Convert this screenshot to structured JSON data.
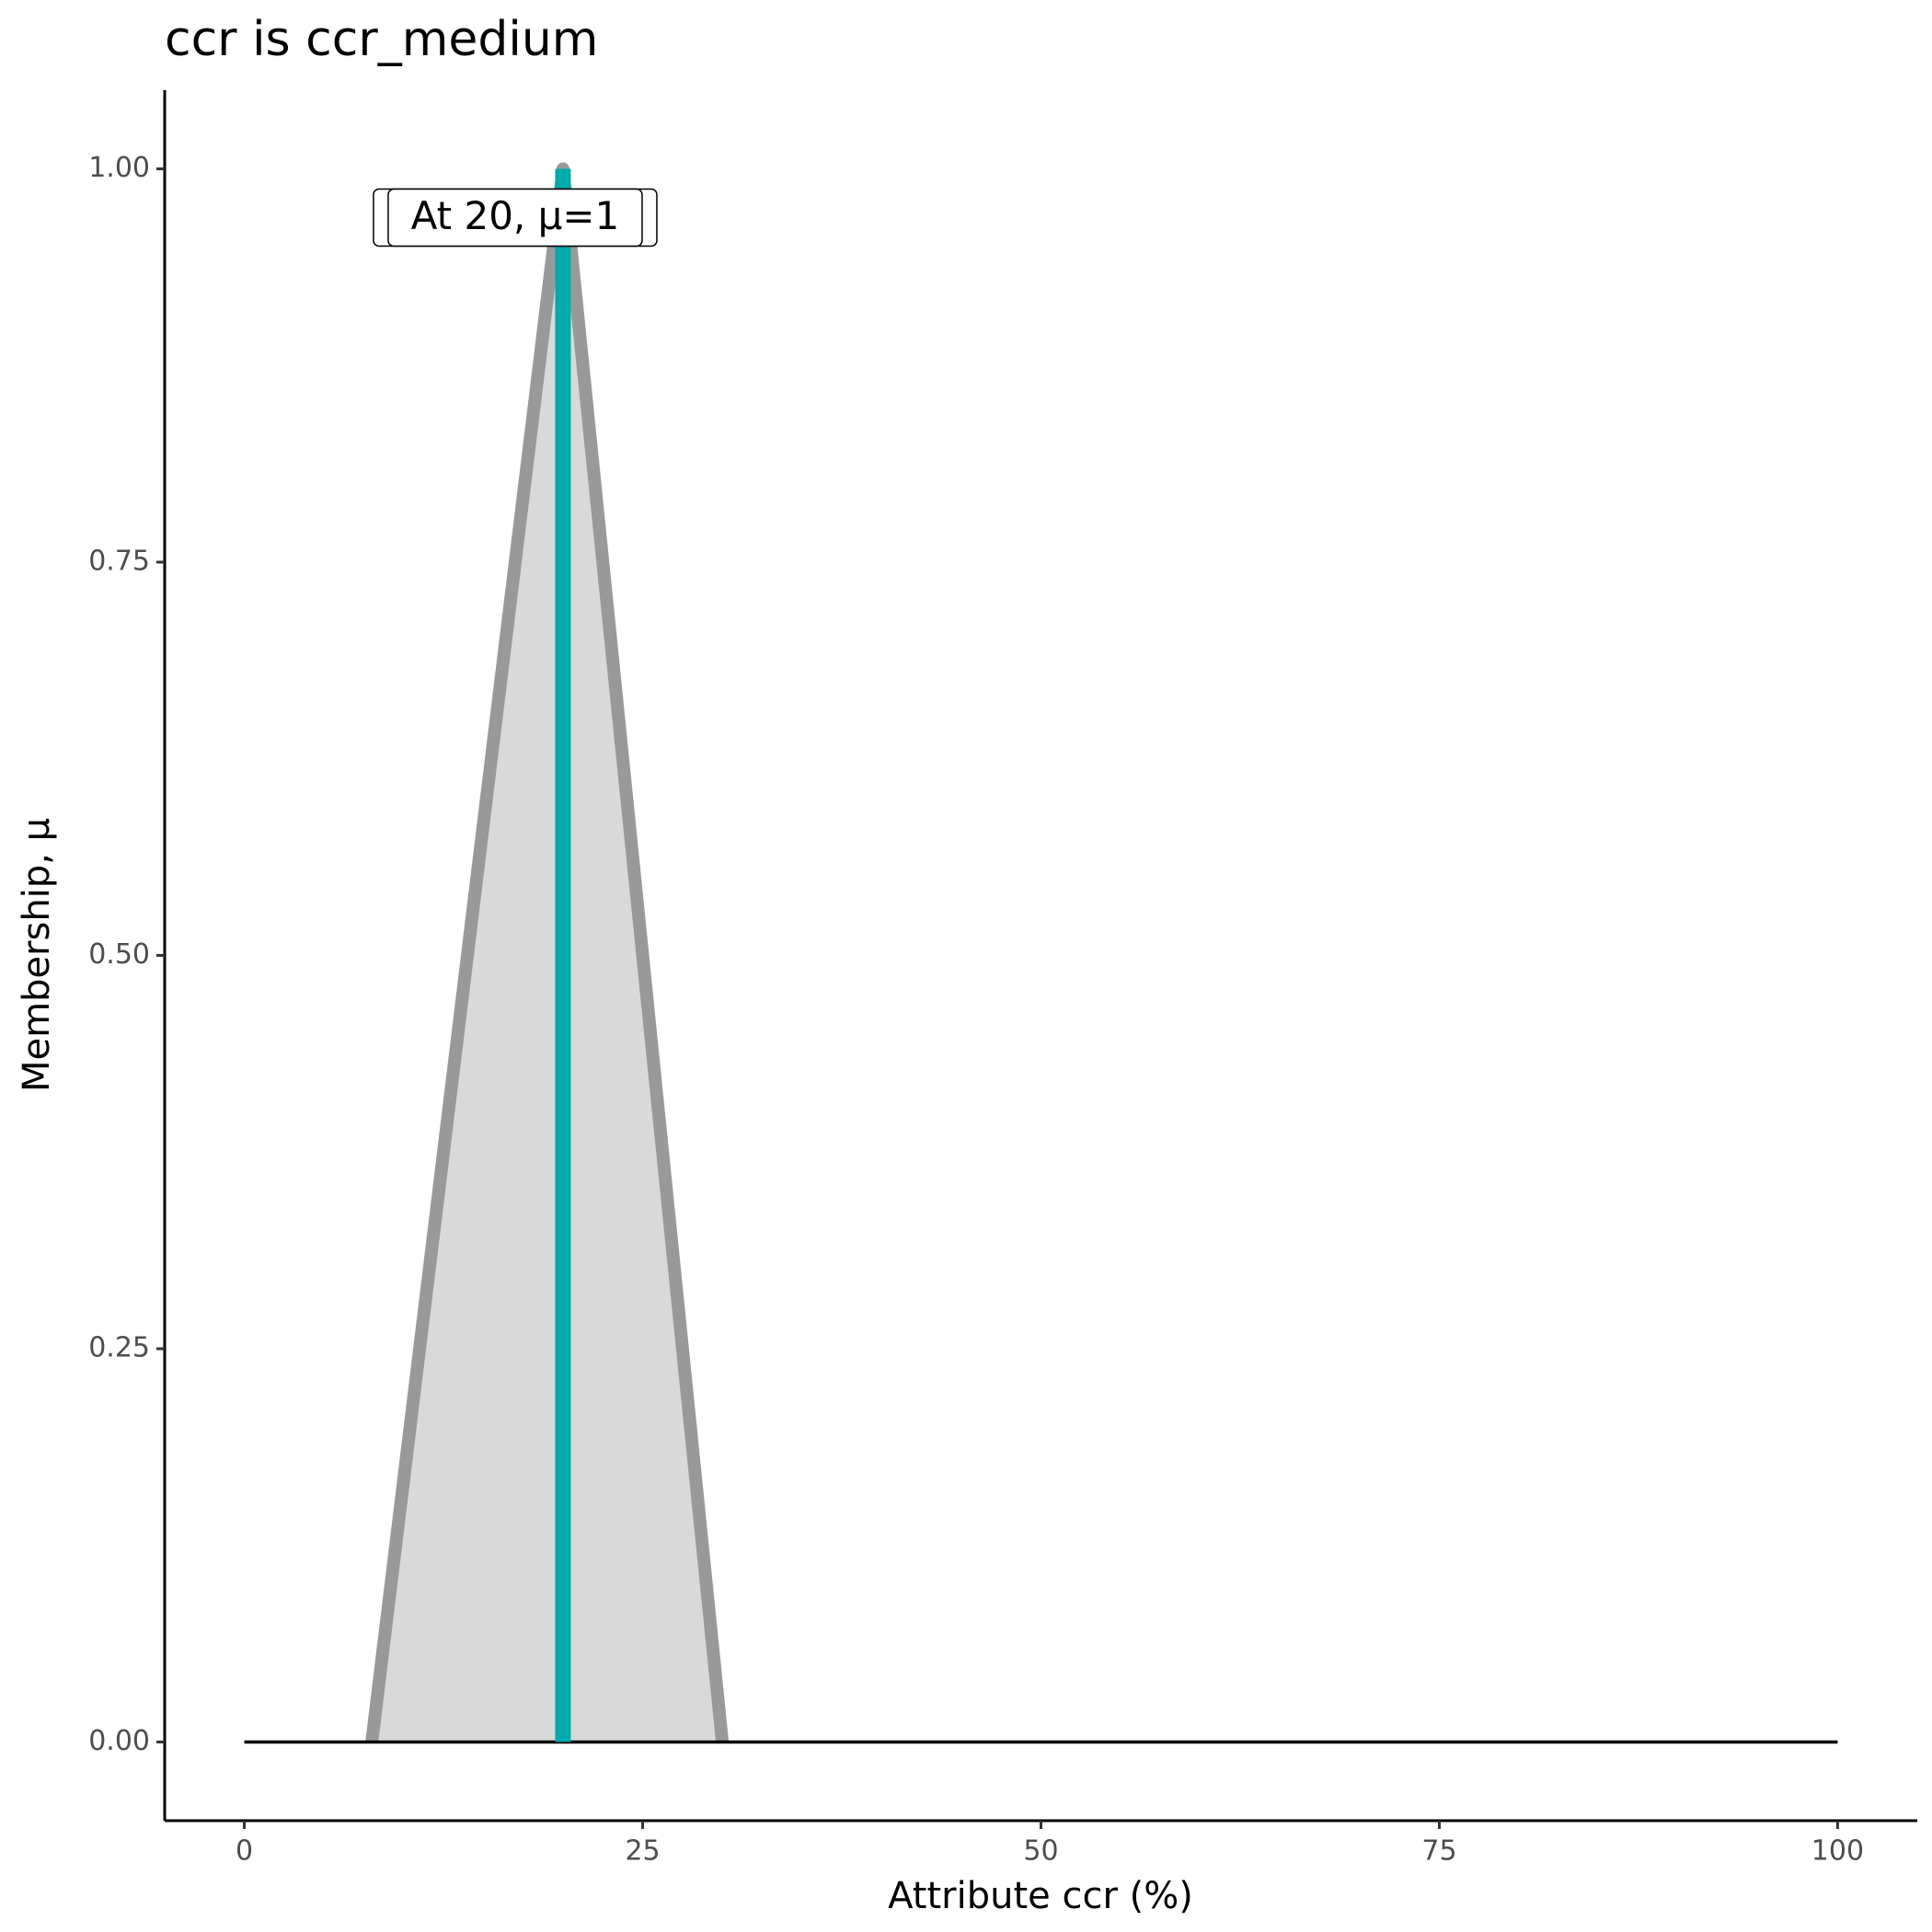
{
  "chart_data": {
    "type": "area",
    "title": "ccr is ccr_medium",
    "x_label": "Attribute ccr (%)",
    "y_label": "Membership, μ",
    "x": [
      8,
      20,
      30
    ],
    "values": [
      0,
      1,
      0
    ],
    "color": "#999999",
    "fill": "#d9d9d9",
    "baseline": {
      "x": [
        0,
        100
      ],
      "values": [
        0,
        0
      ],
      "color": "#000000"
    },
    "highlight": {
      "x": 20,
      "y": 1,
      "color": "#00aaaa",
      "label": "At 20, μ=1"
    },
    "xlim": [
      -5,
      105
    ],
    "ylim": [
      -0.05,
      1.05
    ],
    "xticks": [
      0,
      25,
      50,
      75,
      100
    ],
    "yticks": [
      {
        "value": 0,
        "label": "0.00"
      },
      {
        "value": 0.25,
        "label": "0.25"
      },
      {
        "value": 0.5,
        "label": "0.50"
      },
      {
        "value": 0.75,
        "label": "0.75"
      },
      {
        "value": 1,
        "label": "1.00"
      }
    ],
    "grid": false
  }
}
